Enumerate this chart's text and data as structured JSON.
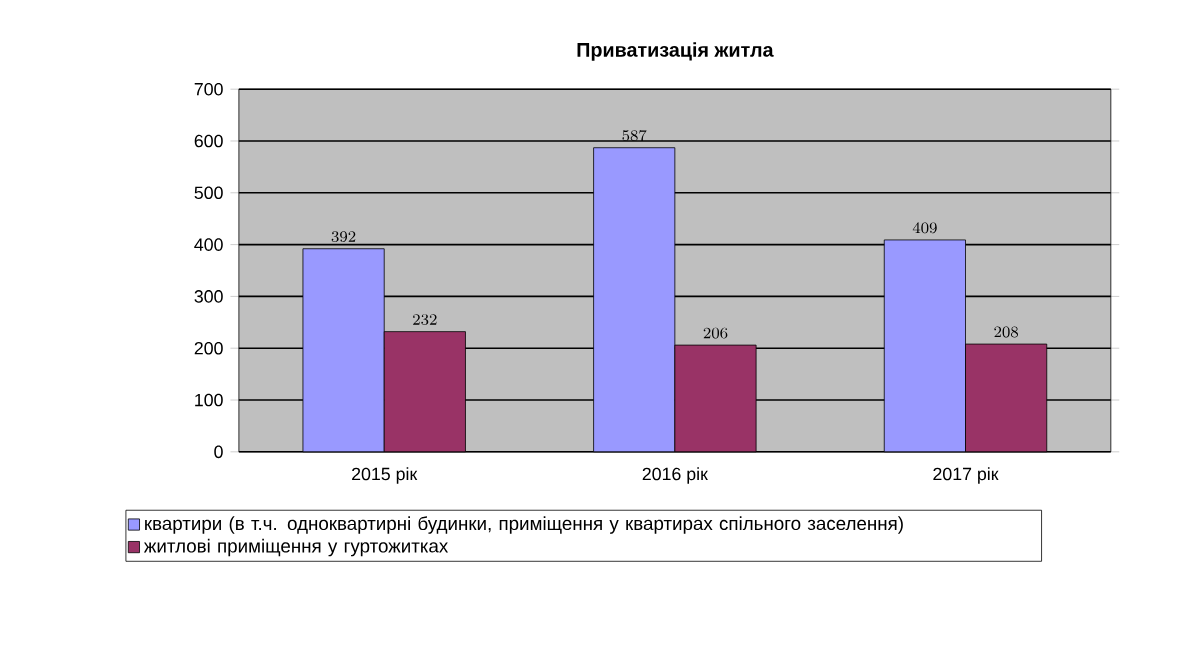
{
  "chart_data": {
    "type": "bar",
    "title": "Приватизація житла",
    "categories": [
      "2015 рік",
      "2016 рік",
      "2017 рік"
    ],
    "series": [
      {
        "name": "квартири (в т.ч. одноквартирні будинки, приміщення у квартирах спільного заселення)",
        "color": "#9999ff",
        "values": [
          392,
          587,
          409
        ]
      },
      {
        "name": "житлові приміщення у гуртожитках",
        "color": "#993366",
        "values": [
          232,
          206,
          208
        ]
      }
    ],
    "ylim": [
      0,
      700
    ],
    "yticks": [
      0,
      100,
      200,
      300,
      400,
      500,
      600,
      700
    ],
    "grid": "y",
    "legend": "bottom",
    "data_labels": true
  }
}
